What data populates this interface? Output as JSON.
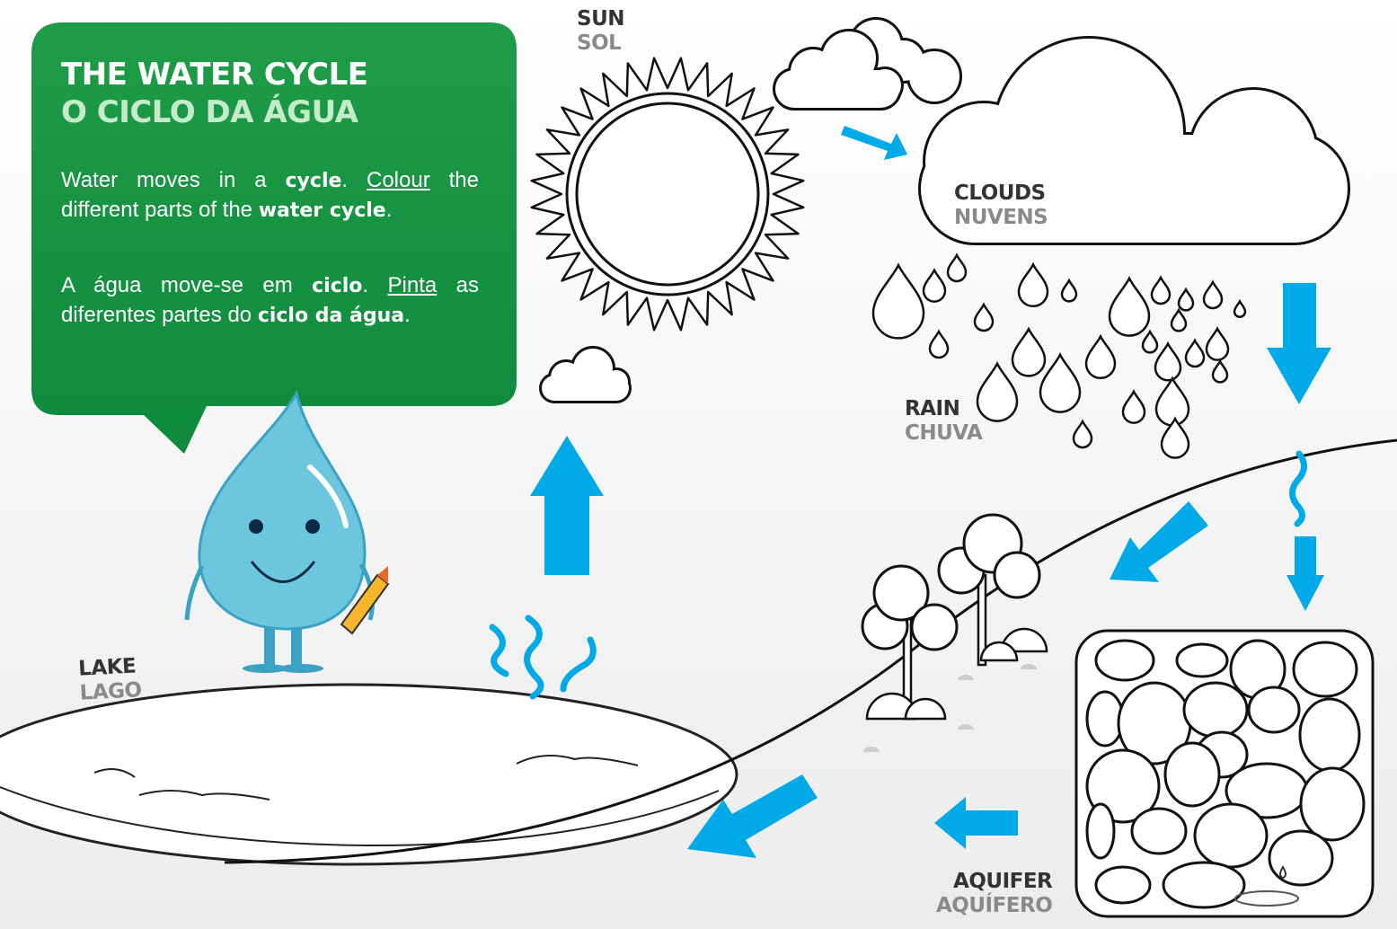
{
  "title": {
    "en": "THE WATER CYCLE",
    "pt": "O CICLO DA ÁGUA"
  },
  "intro": {
    "en": [
      "Water moves in a ",
      "cycle",
      ". ",
      "Colour",
      " the different parts of the ",
      "water cycle",
      "."
    ],
    "pt": [
      "A água move-se em ",
      "ciclo",
      ". ",
      "Pinta",
      " as diferentes partes do ",
      "ciclo da água",
      "."
    ]
  },
  "labels": {
    "sun": {
      "en": "SUN",
      "pt": "SOL"
    },
    "clouds": {
      "en": "CLOUDS",
      "pt": "NUVENS"
    },
    "rain": {
      "en": "RAIN",
      "pt": "CHUVA"
    },
    "lake": {
      "en": "LAKE",
      "pt": "LAGO"
    },
    "aquifer": {
      "en": "AQUIFER",
      "pt": "AQUÍFERO"
    }
  }
}
